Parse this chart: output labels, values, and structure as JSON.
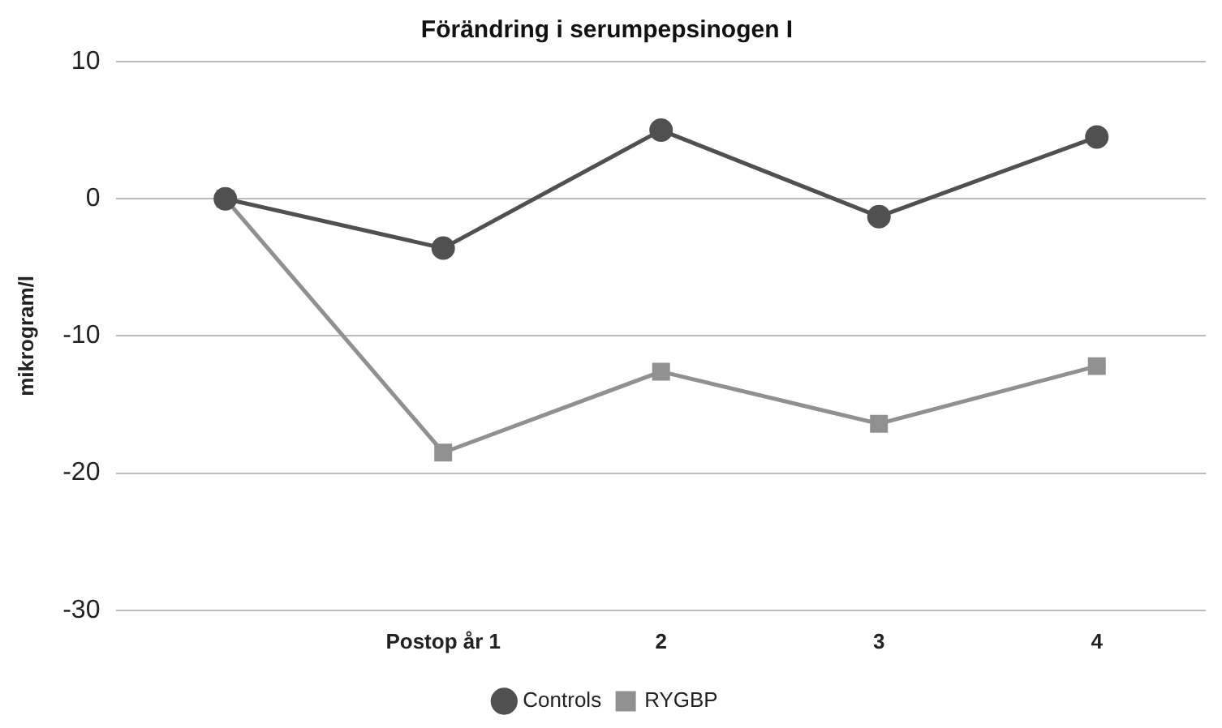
{
  "chart_data": {
    "type": "line",
    "title": "Förändring i serumpepsinogen I",
    "ylabel": "mikrogram/l",
    "categories": [
      null,
      "Postop år 1",
      "2",
      "3",
      "4"
    ],
    "series": [
      {
        "name": "Controls",
        "color": "#505050",
        "marker": "circle",
        "values": [
          0,
          -3.6,
          5.0,
          -1.3,
          4.5
        ]
      },
      {
        "name": "RYGBP",
        "color": "#909090",
        "marker": "square",
        "values": [
          0,
          -18.5,
          -12.6,
          -16.4,
          -12.2
        ]
      }
    ],
    "ylim": [
      -30,
      10
    ],
    "yticks": [
      -30,
      -20,
      -10,
      0,
      10
    ],
    "grid": "y",
    "legend": "bottom"
  }
}
